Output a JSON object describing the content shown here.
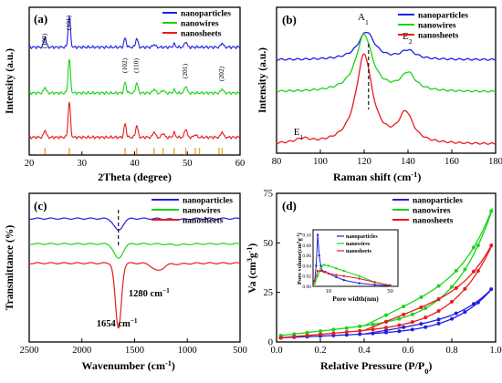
{
  "colors": {
    "nanoparticles": "#1f1fe0",
    "nanowires": "#19d419",
    "nanosheets": "#e81b1b",
    "reference": "#f5a623",
    "axis": "#000000"
  },
  "chart_data": [
    {
      "panel": "(a)",
      "type": "line",
      "xlabel": "2Theta (degree)",
      "ylabel": "Intensity (a.u.)",
      "xlim": [
        20,
        60
      ],
      "xticks": [
        "20",
        "30",
        "40",
        "50",
        "60"
      ],
      "legend": {
        "placement": "top-right",
        "entries": [
          "nanoparticles",
          "nanowires",
          "nanosheets"
        ]
      },
      "peak_labels": [
        {
          "text": "(100)",
          "x": 23.0
        },
        {
          "text": "(101)",
          "x": 27.6
        },
        {
          "text": "(102)",
          "x": 38.2
        },
        {
          "text": "(110)",
          "x": 40.4
        },
        {
          "text": "(201)",
          "x": 49.7
        },
        {
          "text": "(202)",
          "x": 56.6
        }
      ],
      "reference_peaks": [
        23.0,
        27.6,
        38.2,
        40.4,
        43.7,
        45.4,
        47.5,
        49.7,
        51.5,
        52.3,
        56.0,
        56.6
      ],
      "series": [
        {
          "name": "nanoparticles",
          "offset": 0.73,
          "peaks": [
            [
              23.0,
              0.07
            ],
            [
              27.6,
              0.21
            ],
            [
              38.2,
              0.06
            ],
            [
              40.4,
              0.06
            ],
            [
              43.7,
              0.02
            ],
            [
              47.5,
              0.02
            ],
            [
              49.7,
              0.04
            ],
            [
              56.6,
              0.03
            ]
          ]
        },
        {
          "name": "nanowires",
          "offset": 0.42,
          "peaks": [
            [
              23.0,
              0.04
            ],
            [
              27.6,
              0.23
            ],
            [
              38.2,
              0.07
            ],
            [
              40.4,
              0.07
            ],
            [
              43.7,
              0.03
            ],
            [
              45.4,
              0.02
            ],
            [
              47.5,
              0.02
            ],
            [
              49.7,
              0.05
            ],
            [
              56.6,
              0.03
            ]
          ]
        },
        {
          "name": "nanosheets",
          "offset": 0.12,
          "peaks": [
            [
              23.0,
              0.05
            ],
            [
              27.6,
              0.24
            ],
            [
              38.2,
              0.09
            ],
            [
              40.4,
              0.08
            ],
            [
              43.7,
              0.04
            ],
            [
              45.4,
              0.03
            ],
            [
              47.5,
              0.03
            ],
            [
              49.7,
              0.06
            ],
            [
              51.5,
              0.02
            ],
            [
              56.6,
              0.04
            ]
          ]
        }
      ]
    },
    {
      "panel": "(b)",
      "type": "line",
      "xlabel": "Raman shift (cm-1)",
      "ylabel": "Intensity (a.u.)",
      "xlim": [
        80,
        180
      ],
      "xticks": [
        "80",
        "100",
        "120",
        "140",
        "160",
        "180"
      ],
      "legend": {
        "placement": "top-right",
        "entries": [
          "nanoparticles",
          "nanowires",
          "nanosheets"
        ]
      },
      "peak_labels": [
        {
          "text": "A1",
          "x": 120
        },
        {
          "text": "E2",
          "x": 140
        },
        {
          "text": "E1",
          "x": 92
        }
      ],
      "marker_x": 122,
      "series": [
        {
          "name": "nanoparticles",
          "baseline": 0.64,
          "peaks": [
            [
              121,
              0.19,
              4.5
            ],
            [
              140,
              0.06,
              4
            ]
          ]
        },
        {
          "name": "nanowires",
          "baseline": 0.42,
          "peaks": [
            [
              120,
              0.39,
              4.5
            ],
            [
              140,
              0.12,
              4
            ]
          ]
        },
        {
          "name": "nanosheets",
          "baseline": 0.06,
          "peaks": [
            [
              92,
              0.03,
              4
            ],
            [
              120,
              0.61,
              4.5
            ],
            [
              139,
              0.2,
              4
            ]
          ]
        }
      ]
    },
    {
      "panel": "(c)",
      "type": "line",
      "xlabel": "Wavenumber (cm-1)",
      "ylabel": "Transmittance (%)",
      "xlim": [
        2500,
        500
      ],
      "xticks": [
        "2500",
        "2000",
        "1500",
        "1000",
        "500"
      ],
      "legend": {
        "placement": "top-right",
        "entries": [
          "nanoparticles",
          "nanowires",
          "nanosheets"
        ]
      },
      "annotations": [
        {
          "text": "1280 cm−1",
          "x": 1280
        },
        {
          "text": "1654 cm−1",
          "x": 1654
        }
      ],
      "marker_x": 1654,
      "series": [
        {
          "name": "nanoparticles",
          "baseline": 0.83,
          "peaks": [
            [
              1654,
              0.08,
              40
            ]
          ]
        },
        {
          "name": "nanowires",
          "baseline": 0.66,
          "peaks": [
            [
              1654,
              0.1,
              40
            ]
          ]
        },
        {
          "name": "nanosheets",
          "baseline": 0.53,
          "peaks": [
            [
              1654,
              0.44,
              28
            ],
            [
              1280,
              0.05,
              50
            ]
          ]
        }
      ]
    },
    {
      "panel": "(d)",
      "type": "line",
      "xlabel": "Relative Pressure (P/P0)",
      "ylabel": "Va (cm3g-1)",
      "xlim": [
        0.0,
        1.0
      ],
      "ylim": [
        0,
        75
      ],
      "xticks": [
        "0.0",
        "0.2",
        "0.4",
        "0.6",
        "0.8",
        "1.0"
      ],
      "yticks": [
        "0",
        "25",
        "50",
        "75"
      ],
      "legend": {
        "placement": "top-right",
        "entries": [
          "nanoparticles",
          "nanowires",
          "nanosheets"
        ]
      },
      "series": [
        {
          "name": "nanoparticles",
          "vmax": 29,
          "v0": 2,
          "hyst": 0.08
        },
        {
          "name": "nanowires",
          "vmax": 72,
          "v0": 3,
          "hyst": 0.1
        },
        {
          "name": "nanosheets",
          "vmax": 53,
          "v0": 2,
          "hyst": 0.12
        }
      ],
      "inset": {
        "xlabel": "Pore width(nm)",
        "ylabel": "Pore volume(cm3g-1)",
        "xlim": [
          0,
          55
        ],
        "ylim": [
          0,
          0.11
        ],
        "xticks": [
          "10",
          "50"
        ],
        "yticks": [
          "0.00",
          "0.02",
          "0.04",
          "0.06",
          "0.08",
          "0.10"
        ],
        "legend_entries": [
          "nanoparticles",
          "nanowires",
          "nanosheets"
        ],
        "series": [
          {
            "name": "nanoparticles",
            "x": [
              1,
              2,
              3,
              4,
              5,
              6,
              8,
              10,
              15,
              20,
              30,
              40,
              50
            ],
            "y": [
              0.01,
              0.04,
              0.1,
              0.06,
              0.04,
              0.03,
              0.028,
              0.025,
              0.018,
              0.012,
              0.006,
              0.003,
              0.001
            ]
          },
          {
            "name": "nanowires",
            "x": [
              1,
              3,
              5,
              7,
              10,
              15,
              20,
              30,
              40,
              50
            ],
            "y": [
              0.005,
              0.02,
              0.035,
              0.042,
              0.04,
              0.035,
              0.03,
              0.02,
              0.008,
              0.002
            ]
          },
          {
            "name": "nanosheets",
            "x": [
              1,
              3,
              5,
              7,
              10,
              15,
              20,
              30,
              40,
              50
            ],
            "y": [
              0.01,
              0.03,
              0.03,
              0.028,
              0.025,
              0.022,
              0.02,
              0.015,
              0.008,
              0.002
            ]
          }
        ]
      }
    }
  ]
}
